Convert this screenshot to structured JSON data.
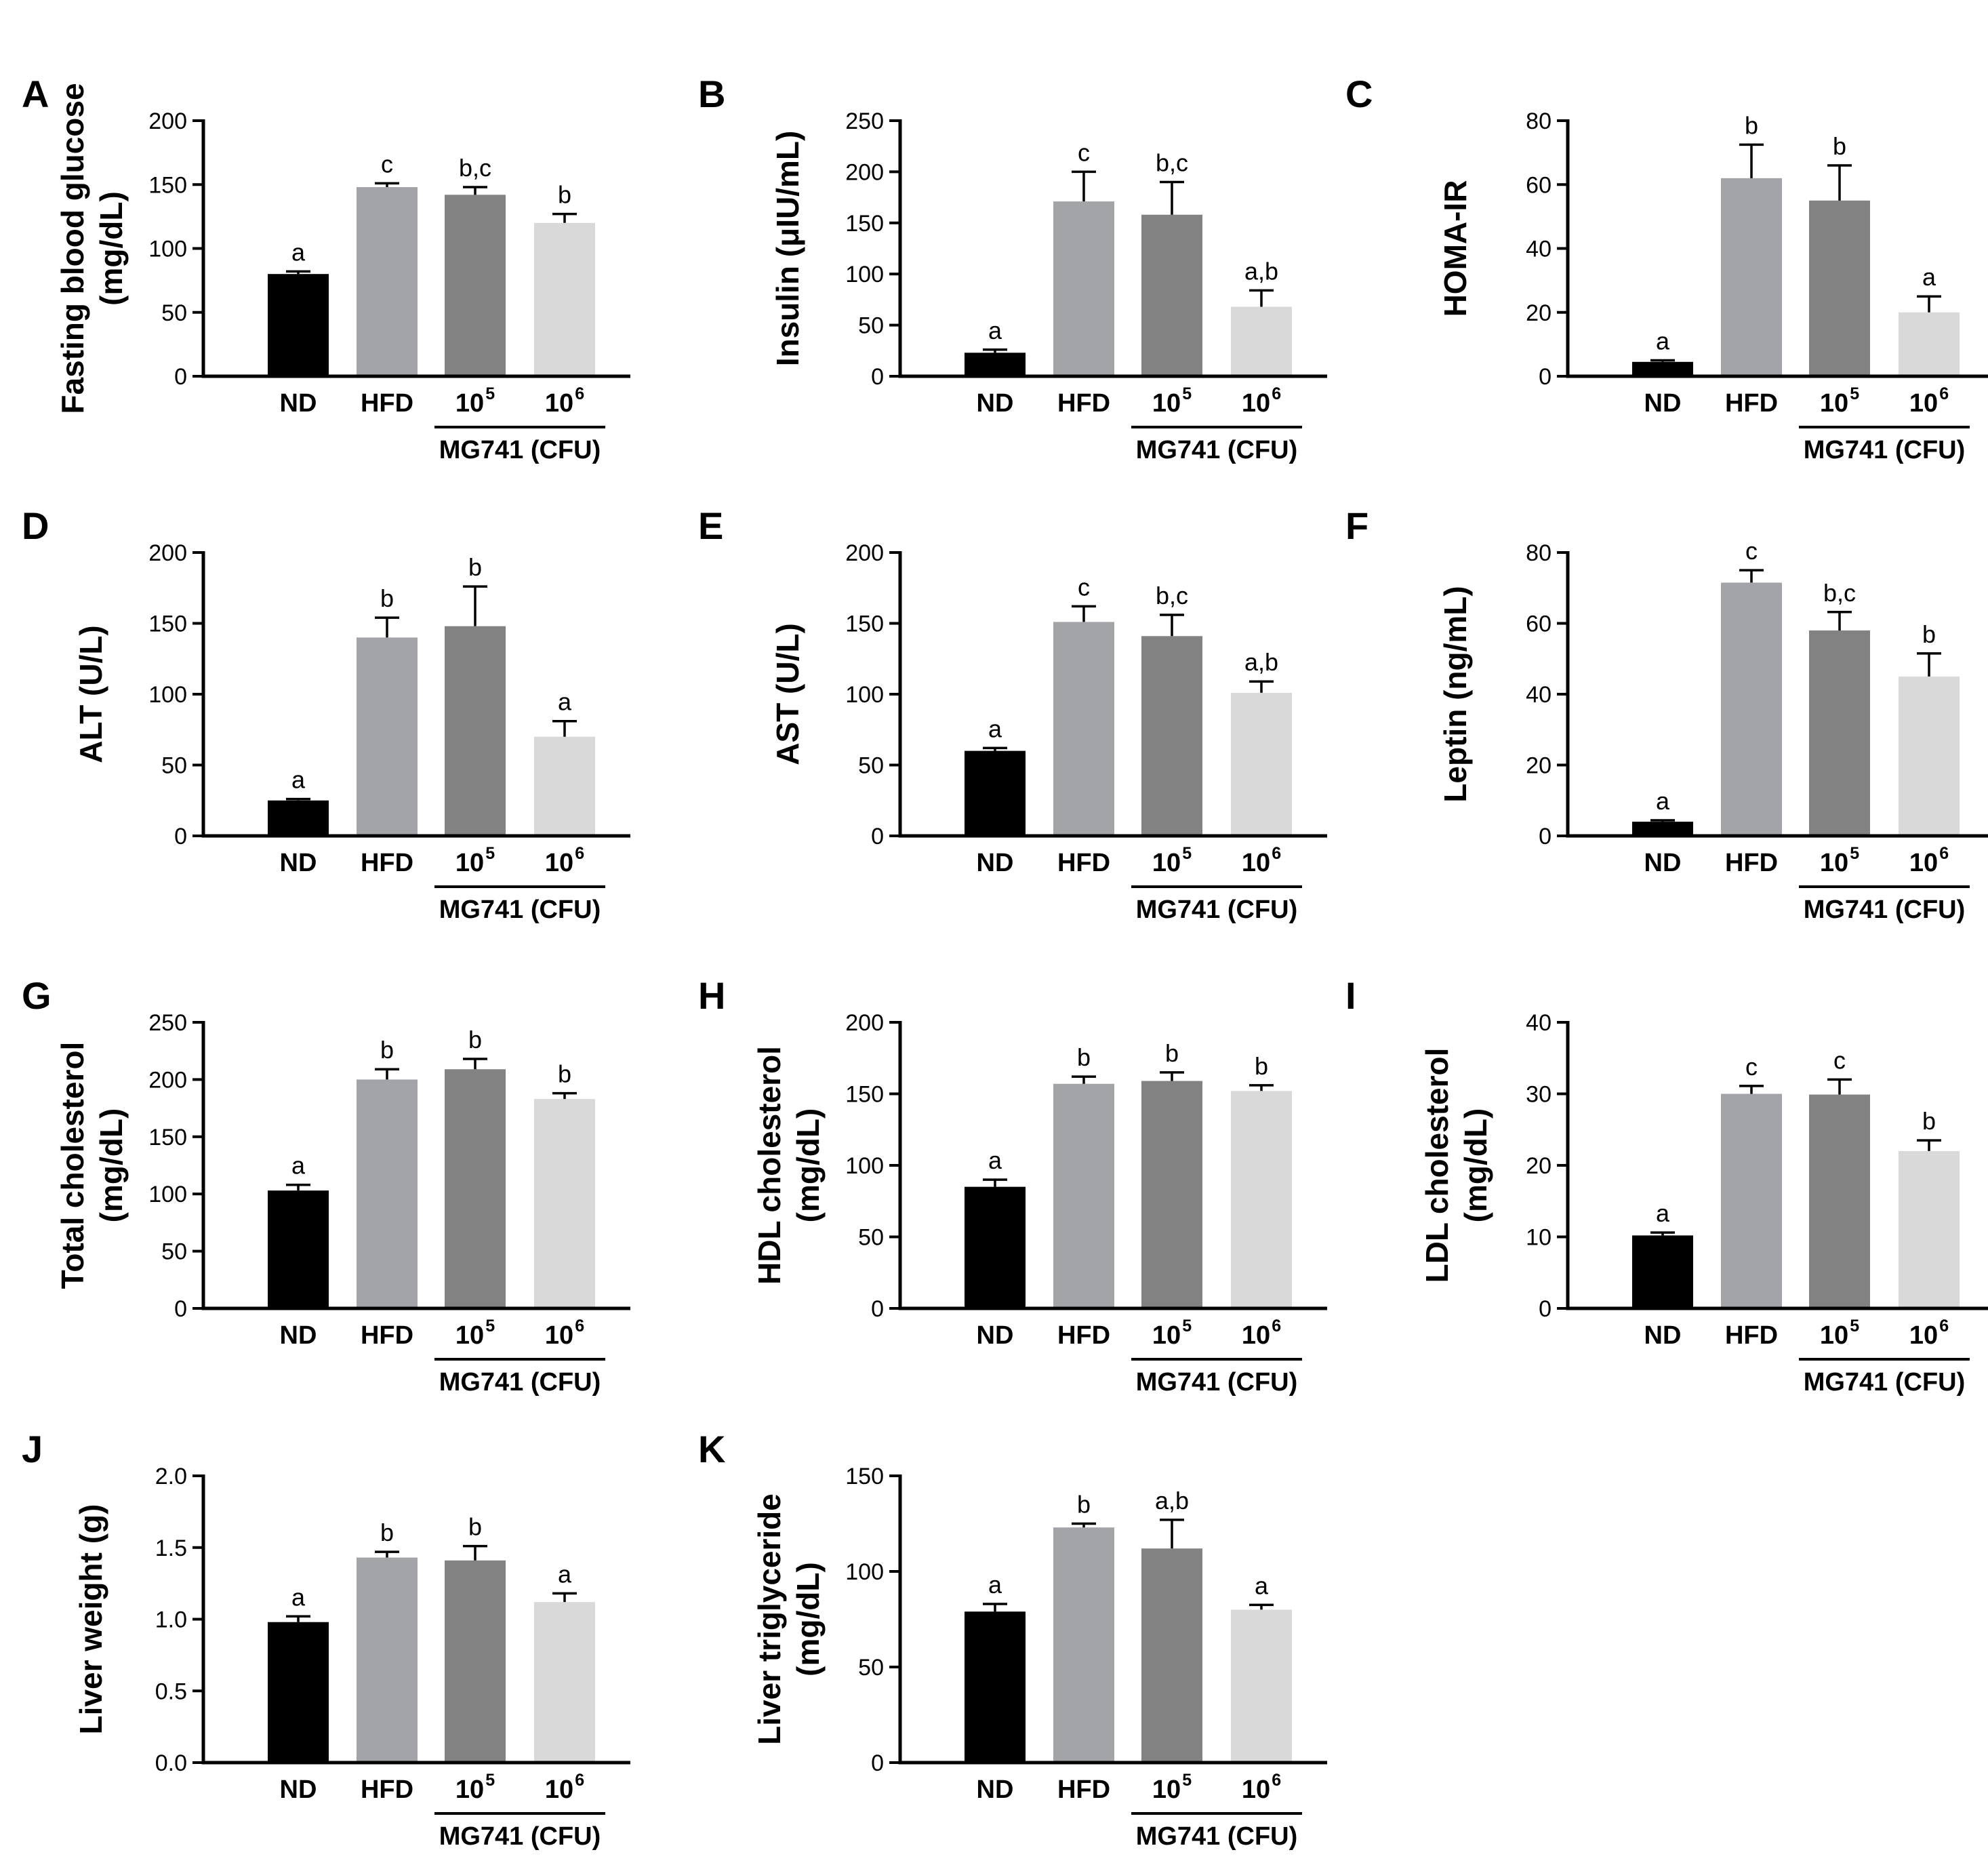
{
  "chart_data": [
    {
      "letter": "A",
      "type": "bar",
      "ylabel": [
        "Fasting blood glucose",
        "(mg/dL)"
      ],
      "ylim": [
        0,
        200
      ],
      "ytick_labels": [
        "0",
        "50",
        "100",
        "150",
        "200"
      ],
      "categories": [
        "ND",
        "HFD",
        "10^5",
        "10^6"
      ],
      "values": [
        80,
        148,
        142,
        120
      ],
      "errors": [
        2,
        3,
        6,
        7
      ],
      "significance": [
        "a",
        "c",
        "b,c",
        "b"
      ],
      "group_label": "MG741 (CFU)"
    },
    {
      "letter": "B",
      "type": "bar",
      "ylabel": [
        "Insulin (μIU/mL)"
      ],
      "ylim": [
        0,
        250
      ],
      "ytick_labels": [
        "0",
        "50",
        "100",
        "150",
        "200",
        "250"
      ],
      "categories": [
        "ND",
        "HFD",
        "10^5",
        "10^6"
      ],
      "values": [
        23,
        171,
        158,
        68
      ],
      "errors": [
        3,
        29,
        32,
        16
      ],
      "significance": [
        "a",
        "c",
        "b,c",
        "a,b"
      ],
      "group_label": "MG741 (CFU)"
    },
    {
      "letter": "C",
      "type": "bar",
      "ylabel": [
        "HOMA-IR"
      ],
      "ylim": [
        0,
        80
      ],
      "ytick_labels": [
        "0",
        "20",
        "40",
        "60",
        "80"
      ],
      "categories": [
        "ND",
        "HFD",
        "10^5",
        "10^6"
      ],
      "values": [
        4.5,
        62,
        55,
        20
      ],
      "errors": [
        0.5,
        10.5,
        11,
        5
      ],
      "significance": [
        "a",
        "b",
        "b",
        "a"
      ],
      "group_label": "MG741 (CFU)"
    },
    {
      "letter": "D",
      "type": "bar",
      "ylabel": [
        "ALT (U/L)"
      ],
      "ylim": [
        0,
        200
      ],
      "ytick_labels": [
        "0",
        "50",
        "100",
        "150",
        "200"
      ],
      "categories": [
        "ND",
        "HFD",
        "10^5",
        "10^6"
      ],
      "values": [
        25,
        140,
        148,
        70
      ],
      "errors": [
        1,
        14,
        28,
        11
      ],
      "significance": [
        "a",
        "b",
        "b",
        "a"
      ],
      "group_label": "MG741 (CFU)"
    },
    {
      "letter": "E",
      "type": "bar",
      "ylabel": [
        "AST (U/L)"
      ],
      "ylim": [
        0,
        200
      ],
      "ytick_labels": [
        "0",
        "50",
        "100",
        "150",
        "200"
      ],
      "categories": [
        "ND",
        "HFD",
        "10^5",
        "10^6"
      ],
      "values": [
        60,
        151,
        141,
        101
      ],
      "errors": [
        2,
        11,
        15,
        8
      ],
      "significance": [
        "a",
        "c",
        "b,c",
        "a,b"
      ],
      "group_label": "MG741 (CFU)"
    },
    {
      "letter": "F",
      "type": "bar",
      "ylabel": [
        "Leptin (ng/mL)"
      ],
      "ylim": [
        0,
        80
      ],
      "ytick_labels": [
        "0",
        "20",
        "40",
        "60",
        "80"
      ],
      "categories": [
        "ND",
        "HFD",
        "10^5",
        "10^6"
      ],
      "values": [
        4,
        71.5,
        58,
        45
      ],
      "errors": [
        0.4,
        3.5,
        5.2,
        6.5
      ],
      "significance": [
        "a",
        "c",
        "b,c",
        "b"
      ],
      "group_label": "MG741 (CFU)"
    },
    {
      "letter": "G",
      "type": "bar",
      "ylabel": [
        "Total cholesterol",
        "(mg/dL)"
      ],
      "ylim": [
        0,
        250
      ],
      "ytick_labels": [
        "0",
        "50",
        "100",
        "150",
        "200",
        "250"
      ],
      "categories": [
        "ND",
        "HFD",
        "10^5",
        "10^6"
      ],
      "values": [
        103,
        200,
        209,
        183
      ],
      "errors": [
        5,
        9,
        9,
        5
      ],
      "significance": [
        "a",
        "b",
        "b",
        "b"
      ],
      "group_label": "MG741 (CFU)"
    },
    {
      "letter": "H",
      "type": "bar",
      "ylabel": [
        "HDL  cholesterol",
        "(mg/dL)"
      ],
      "ylim": [
        0,
        200
      ],
      "ytick_labels": [
        "0",
        "50",
        "100",
        "150",
        "200"
      ],
      "categories": [
        "ND",
        "HFD",
        "10^5",
        "10^6"
      ],
      "values": [
        85,
        157,
        159,
        152
      ],
      "errors": [
        5,
        5,
        6,
        4
      ],
      "significance": [
        "a",
        "b",
        "b",
        "b"
      ],
      "group_label": "MG741 (CFU)"
    },
    {
      "letter": "I",
      "type": "bar",
      "ylabel": [
        "LDL cholesterol",
        "(mg/dL)"
      ],
      "ylim": [
        0,
        40
      ],
      "ytick_labels": [
        "0",
        "10",
        "20",
        "30",
        "40"
      ],
      "categories": [
        "ND",
        "HFD",
        "10^5",
        "10^6"
      ],
      "values": [
        10.2,
        30,
        29.9,
        22
      ],
      "errors": [
        0.4,
        1.1,
        2.1,
        1.5
      ],
      "significance": [
        "a",
        "c",
        "c",
        "b"
      ],
      "group_label": "MG741 (CFU)"
    },
    {
      "letter": "J",
      "type": "bar",
      "ylabel": [
        "Liver weight  (g)"
      ],
      "ylim": [
        0,
        2
      ],
      "ytick_labels": [
        "0.0",
        "0.5",
        "1.0",
        "1.5",
        "2.0"
      ],
      "categories": [
        "ND",
        "HFD",
        "10^5",
        "10^6"
      ],
      "values": [
        0.98,
        1.43,
        1.41,
        1.12
      ],
      "errors": [
        0.04,
        0.04,
        0.1,
        0.06
      ],
      "significance": [
        "a",
        "b",
        "b",
        "a"
      ],
      "group_label": "MG741 (CFU)"
    },
    {
      "letter": "K",
      "type": "bar",
      "ylabel": [
        "Liver triglyceride",
        "(mg/dL)"
      ],
      "ylim": [
        0,
        150
      ],
      "ytick_labels": [
        "0",
        "50",
        "100",
        "150"
      ],
      "categories": [
        "ND",
        "HFD",
        "10^5",
        "10^6"
      ],
      "values": [
        79,
        123,
        112,
        80
      ],
      "errors": [
        4,
        2,
        15,
        2.5
      ],
      "significance": [
        "a",
        "b",
        "a,b",
        "a"
      ],
      "group_label": "MG741 (CFU)"
    }
  ],
  "bar_colors": [
    "#000000",
    "#a3a4a8",
    "#828282",
    "#d9d9d9"
  ]
}
